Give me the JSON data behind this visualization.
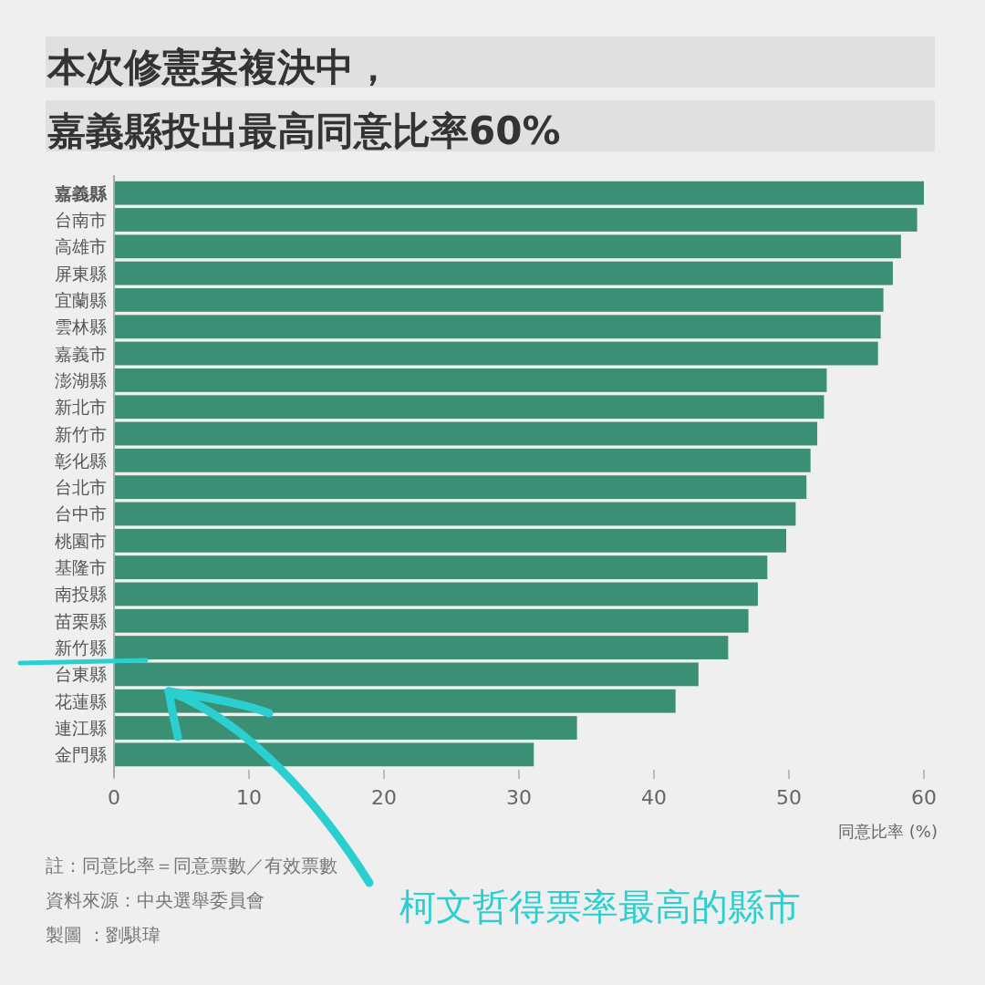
{
  "chart_data": {
    "type": "bar",
    "orientation": "horizontal",
    "title": "本次修憲案複決中，",
    "subtitle": "嘉義縣投出最高同意比率60%",
    "categories": [
      "嘉義縣",
      "台南市",
      "高雄市",
      "屏東縣",
      "宜蘭縣",
      "雲林縣",
      "嘉義市",
      "澎湖縣",
      "新北市",
      "新竹市",
      "彰化縣",
      "台北市",
      "台中市",
      "桃園市",
      "基隆市",
      "南投縣",
      "苗栗縣",
      "新竹縣",
      "台東縣",
      "花蓮縣",
      "連江縣",
      "金門縣"
    ],
    "values": [
      60.0,
      59.5,
      58.3,
      57.7,
      57.0,
      56.8,
      56.6,
      52.8,
      52.6,
      52.1,
      51.6,
      51.3,
      50.5,
      49.8,
      48.4,
      47.7,
      47.0,
      45.5,
      43.3,
      41.6,
      34.3,
      31.1
    ],
    "color": "#3a8f74",
    "xlim": [
      0,
      60
    ],
    "xticks": [
      0,
      10,
      20,
      30,
      40,
      50,
      60
    ],
    "xlabel": "同意比率 (%)",
    "annotations": [
      "註：同意比率＝同意票數／有效票數",
      "資料來源：中央選舉委員會",
      "製圖 ：劉騏瑋",
      "柯文哲得票率最高的縣市"
    ]
  }
}
